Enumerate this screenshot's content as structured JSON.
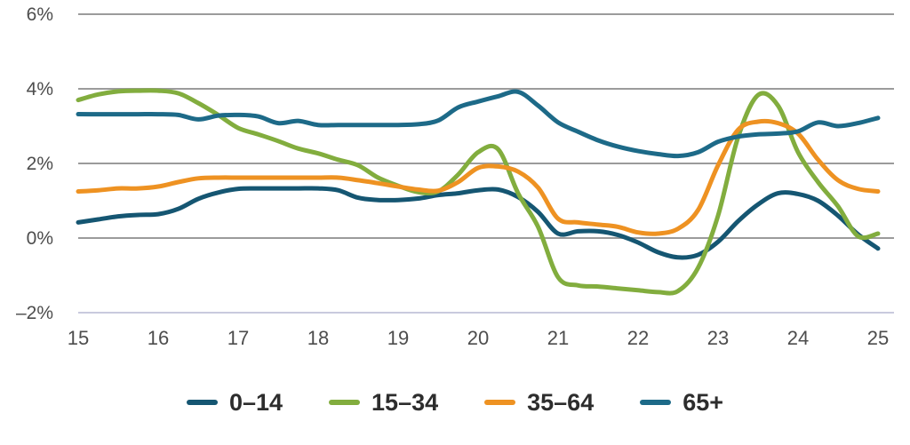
{
  "chart_data": {
    "type": "line",
    "title": "",
    "xlabel": "",
    "ylabel": "",
    "ylim": [
      -2,
      6
    ],
    "xlim": [
      15,
      25.2
    ],
    "grid": "horizontal",
    "legend_position": "bottom",
    "colors": {
      "background": "#ffffff",
      "gridline": "#9b9b9b",
      "baseline": "#c9cade",
      "tick_text": "#4d4d4d",
      "legend_text": "#2d2d2d"
    },
    "y_ticks": [
      {
        "value": 6,
        "label": "6%",
        "light": false
      },
      {
        "value": 4,
        "label": "4%",
        "light": false
      },
      {
        "value": 2,
        "label": "2%",
        "light": false
      },
      {
        "value": 0,
        "label": "0%",
        "light": false
      },
      {
        "value": -2,
        "label": "–2%",
        "light": true
      }
    ],
    "x_ticks": [
      {
        "value": 15,
        "label": "15"
      },
      {
        "value": 16,
        "label": "16"
      },
      {
        "value": 17,
        "label": "17"
      },
      {
        "value": 18,
        "label": "18"
      },
      {
        "value": 19,
        "label": "19"
      },
      {
        "value": 20,
        "label": "20"
      },
      {
        "value": 21,
        "label": "21"
      },
      {
        "value": 22,
        "label": "22"
      },
      {
        "value": 23,
        "label": "23"
      },
      {
        "value": 24,
        "label": "24"
      },
      {
        "value": 25,
        "label": "25"
      }
    ],
    "x": [
      15,
      15.25,
      15.5,
      15.75,
      16,
      16.25,
      16.5,
      16.75,
      17,
      17.25,
      17.5,
      17.75,
      18,
      18.25,
      18.5,
      18.75,
      19,
      19.25,
      19.5,
      19.75,
      20,
      20.25,
      20.5,
      20.75,
      21,
      21.25,
      21.5,
      21.75,
      22,
      22.25,
      22.5,
      22.75,
      23,
      23.25,
      23.5,
      23.75,
      24,
      24.25,
      24.5,
      24.75,
      25
    ],
    "series": [
      {
        "key": "0-14",
        "name": "0–14",
        "color": "#155672",
        "values": [
          0.42,
          0.5,
          0.58,
          0.62,
          0.64,
          0.78,
          1.05,
          1.22,
          1.32,
          1.33,
          1.33,
          1.33,
          1.33,
          1.28,
          1.08,
          1.02,
          1.02,
          1.06,
          1.15,
          1.2,
          1.28,
          1.3,
          1.1,
          0.7,
          0.12,
          0.18,
          0.18,
          0.08,
          -0.12,
          -0.38,
          -0.52,
          -0.45,
          -0.1,
          0.45,
          0.9,
          1.2,
          1.18,
          1.0,
          0.6,
          0.1,
          -0.28
        ]
      },
      {
        "key": "15-34",
        "name": "15–34",
        "color": "#82ad3e",
        "values": [
          3.7,
          3.85,
          3.93,
          3.95,
          3.95,
          3.88,
          3.62,
          3.3,
          2.95,
          2.78,
          2.6,
          2.4,
          2.27,
          2.1,
          1.95,
          1.62,
          1.4,
          1.23,
          1.25,
          1.7,
          2.3,
          2.38,
          1.2,
          0.3,
          -1.05,
          -1.27,
          -1.3,
          -1.35,
          -1.4,
          -1.45,
          -1.42,
          -0.8,
          0.6,
          2.7,
          3.83,
          3.55,
          2.3,
          1.5,
          0.85,
          0.05,
          0.12
        ]
      },
      {
        "key": "35-64",
        "name": "35–64",
        "color": "#ee9222",
        "values": [
          1.25,
          1.28,
          1.33,
          1.33,
          1.38,
          1.5,
          1.6,
          1.62,
          1.62,
          1.62,
          1.62,
          1.62,
          1.62,
          1.62,
          1.55,
          1.47,
          1.38,
          1.3,
          1.27,
          1.5,
          1.88,
          1.92,
          1.78,
          1.35,
          0.52,
          0.42,
          0.36,
          0.3,
          0.15,
          0.12,
          0.25,
          0.75,
          1.95,
          2.9,
          3.12,
          3.08,
          2.8,
          2.1,
          1.55,
          1.32,
          1.25
        ]
      },
      {
        "key": "65plus",
        "name": "65+",
        "color": "#1d6a88",
        "values": [
          3.32,
          3.32,
          3.32,
          3.32,
          3.32,
          3.3,
          3.18,
          3.28,
          3.3,
          3.26,
          3.08,
          3.14,
          3.03,
          3.03,
          3.03,
          3.03,
          3.03,
          3.05,
          3.15,
          3.5,
          3.66,
          3.8,
          3.92,
          3.55,
          3.1,
          2.85,
          2.62,
          2.45,
          2.33,
          2.25,
          2.2,
          2.3,
          2.58,
          2.72,
          2.78,
          2.8,
          2.86,
          3.1,
          3.0,
          3.08,
          3.22
        ]
      }
    ]
  }
}
